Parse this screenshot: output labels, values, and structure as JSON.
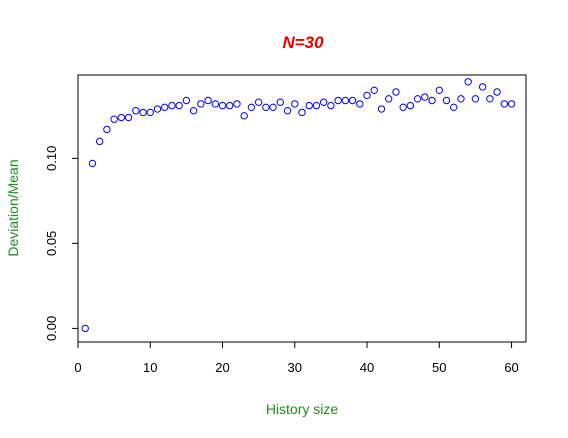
{
  "chart_data": {
    "type": "scatter",
    "title": "N=30",
    "xlabel": "History size",
    "ylabel": "Deviation/Mean",
    "xlim": [
      0,
      62
    ],
    "ylim": [
      -0.008,
      0.149
    ],
    "xticks": [
      0,
      10,
      20,
      30,
      40,
      50,
      60
    ],
    "xtick_labels": [
      "0",
      "10",
      "20",
      "30",
      "40",
      "50",
      "60"
    ],
    "yticks": [
      0.0,
      0.05,
      0.1
    ],
    "ytick_labels": [
      "0.00",
      "0.05",
      "0.10"
    ],
    "grid": false,
    "marker": "open-circle",
    "colors": {
      "title": "#ee0000",
      "axis_labels": "#228b22",
      "points": "#0000ff"
    },
    "x": [
      1,
      2,
      3,
      4,
      5,
      6,
      7,
      8,
      9,
      10,
      11,
      12,
      13,
      14,
      15,
      16,
      17,
      18,
      19,
      20,
      21,
      22,
      23,
      24,
      25,
      26,
      27,
      28,
      29,
      30,
      31,
      32,
      33,
      34,
      35,
      36,
      37,
      38,
      39,
      40,
      41,
      42,
      43,
      44,
      45,
      46,
      47,
      48,
      49,
      50,
      51,
      52,
      53,
      54,
      55,
      56,
      57,
      58,
      59,
      60
    ],
    "y": [
      0.0,
      0.097,
      0.11,
      0.117,
      0.123,
      0.124,
      0.124,
      0.128,
      0.127,
      0.127,
      0.129,
      0.13,
      0.131,
      0.131,
      0.134,
      0.128,
      0.132,
      0.134,
      0.132,
      0.131,
      0.131,
      0.132,
      0.125,
      0.13,
      0.133,
      0.13,
      0.13,
      0.133,
      0.128,
      0.132,
      0.127,
      0.131,
      0.131,
      0.133,
      0.131,
      0.134,
      0.134,
      0.134,
      0.132,
      0.137,
      0.14,
      0.129,
      0.135,
      0.139,
      0.13,
      0.131,
      0.135,
      0.136,
      0.134,
      0.14,
      0.134,
      0.13,
      0.135,
      0.145,
      0.135,
      0.142,
      0.135,
      0.139,
      0.132,
      0.132
    ]
  }
}
